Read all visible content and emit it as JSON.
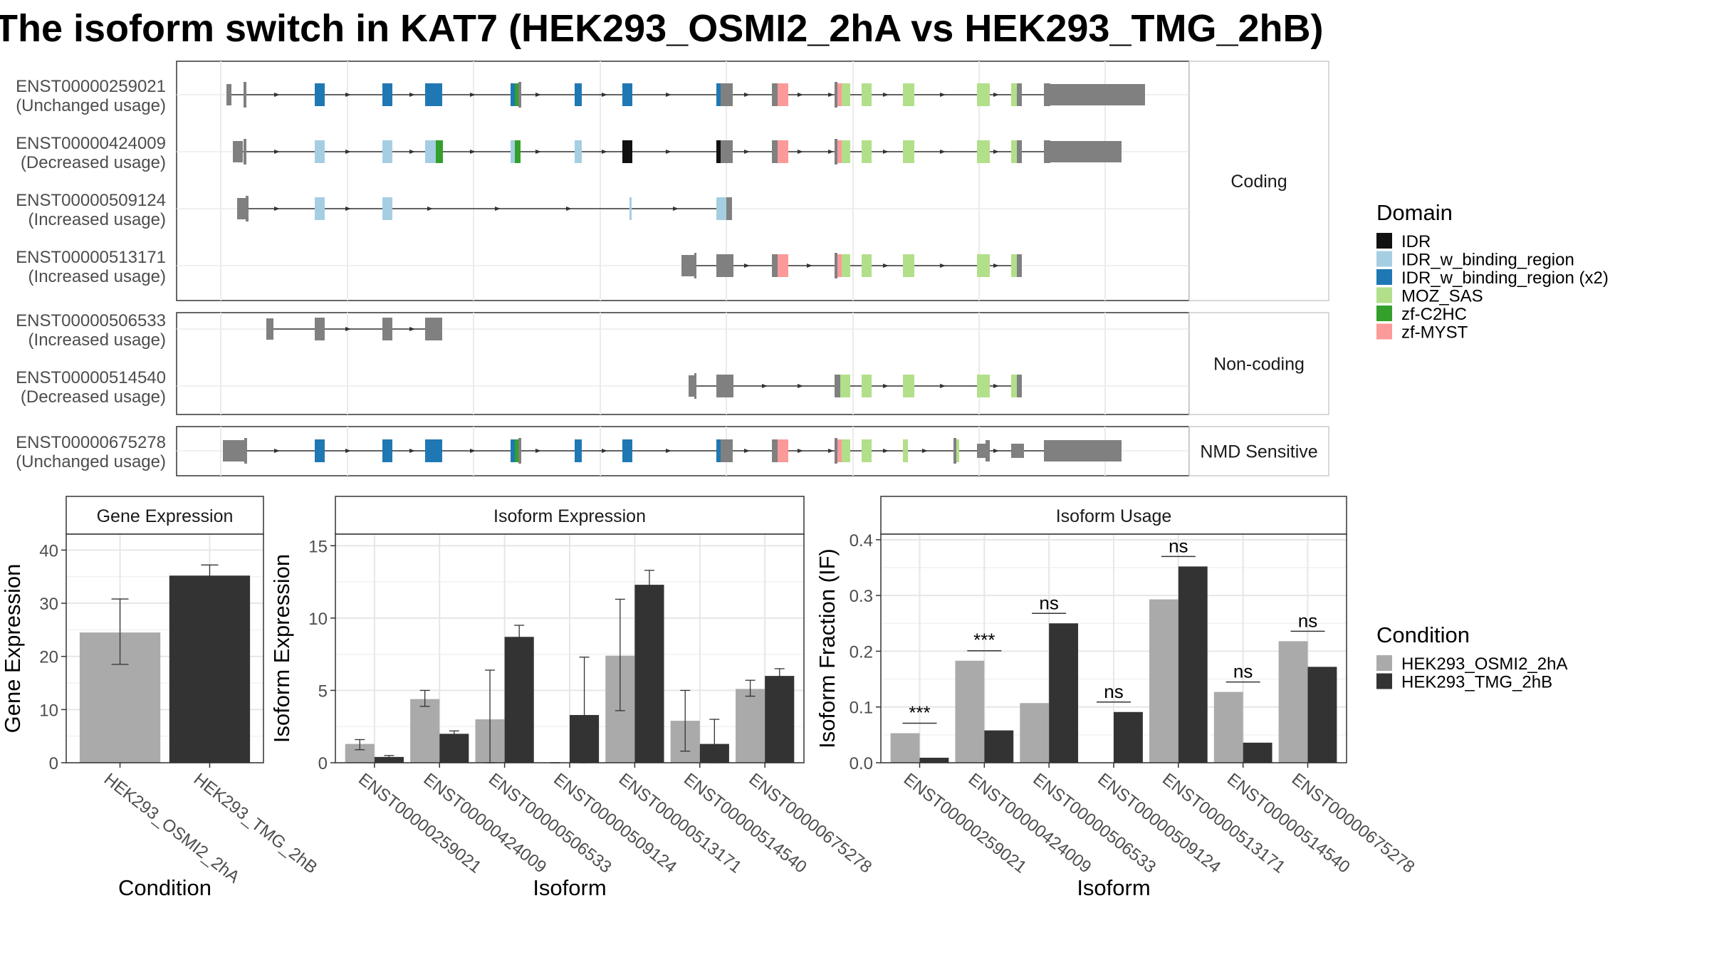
{
  "title": "The isoform switch in KAT7 (HEK293_OSMI2_2hA vs HEK293_TMG_2hB)",
  "colors": {
    "IDR": "#111111",
    "IDR_w_binding_region": "#a6cee3",
    "IDR_w_binding_region (x2)": "#1f78b4",
    "MOZ_SAS": "#b2df8a",
    "zf-C2HC": "#33a02c",
    "zf-MYST": "#fb9a99",
    "feature": "#808080",
    "condA": "#aaaaaa",
    "condB": "#333333"
  },
  "transcripts": {
    "panels": [
      {
        "label": "Coding",
        "rows": [
          {
            "id": "ENST00000259021",
            "usage": "(Unchanged usage)"
          },
          {
            "id": "ENST00000424009",
            "usage": "(Decreased usage)"
          },
          {
            "id": "ENST00000509124",
            "usage": "(Increased usage)"
          },
          {
            "id": "ENST00000513171",
            "usage": "(Increased usage)"
          }
        ]
      },
      {
        "label": "Non-coding",
        "rows": [
          {
            "id": "ENST00000506533",
            "usage": "(Increased usage)"
          },
          {
            "id": "ENST00000514540",
            "usage": "(Decreased usage)"
          }
        ]
      },
      {
        "label": "NMD Sensitive",
        "rows": [
          {
            "id": "ENST00000675278",
            "usage": "(Unchanged usage)"
          }
        ]
      }
    ]
  },
  "legend_domain": {
    "title": "Domain",
    "items": [
      "IDR",
      "IDR_w_binding_region",
      "IDR_w_binding_region (x2)",
      "MOZ_SAS",
      "zf-C2HC",
      "zf-MYST"
    ]
  },
  "legend_condition": {
    "title": "Condition",
    "items": [
      "HEK293_OSMI2_2hA",
      "HEK293_TMG_2hB"
    ]
  },
  "chart_data": [
    {
      "type": "bar",
      "title": "Gene Expression",
      "xlabel": "Condition",
      "ylabel": "Gene Expression",
      "categories": [
        "HEK293_OSMI2_2hA",
        "HEK293_TMG_2hB"
      ],
      "values": [
        24.5,
        35.2
      ],
      "errors": [
        [
          18.5,
          30.8
        ],
        [
          33.2,
          37.2
        ]
      ],
      "ylim": [
        0,
        43
      ],
      "yticks": [
        0,
        10,
        20,
        30,
        40
      ]
    },
    {
      "type": "bar",
      "title": "Isoform Expression",
      "xlabel": "Isoform",
      "ylabel": "Isoform Expression",
      "categories": [
        "ENST00000259021",
        "ENST00000424009",
        "ENST00000506533",
        "ENST00000509124",
        "ENST00000513171",
        "ENST00000514540",
        "ENST00000675278"
      ],
      "series": [
        {
          "name": "HEK293_OSMI2_2hA",
          "values": [
            1.3,
            4.4,
            3.0,
            0.0,
            7.4,
            2.9,
            5.1
          ],
          "errors": [
            [
              0.9,
              1.6
            ],
            [
              3.9,
              5.0
            ],
            [
              0.0,
              6.4
            ],
            [
              0.0,
              0.0
            ],
            [
              3.6,
              11.3
            ],
            [
              0.8,
              5.0
            ],
            [
              4.6,
              5.7
            ]
          ]
        },
        {
          "name": "HEK293_TMG_2hB",
          "values": [
            0.4,
            2.0,
            8.7,
            3.3,
            12.3,
            1.3,
            6.0
          ],
          "errors": [
            [
              0.3,
              0.5
            ],
            [
              1.8,
              2.2
            ],
            [
              8.0,
              9.5
            ],
            [
              0.0,
              7.3
            ],
            [
              11.4,
              13.3
            ],
            [
              0.0,
              3.0
            ],
            [
              5.5,
              6.5
            ]
          ]
        }
      ],
      "ylim": [
        0,
        15.8
      ],
      "yticks": [
        0,
        5,
        10,
        15
      ]
    },
    {
      "type": "bar",
      "title": "Isoform Usage",
      "xlabel": "Isoform",
      "ylabel": "Isoform Fraction (IF)",
      "categories": [
        "ENST00000259021",
        "ENST00000424009",
        "ENST00000506533",
        "ENST00000509124",
        "ENST00000513171",
        "ENST00000514540",
        "ENST00000675278"
      ],
      "series": [
        {
          "name": "HEK293_OSMI2_2hA",
          "values": [
            0.053,
            0.183,
            0.107,
            0.0,
            0.293,
            0.127,
            0.218
          ]
        },
        {
          "name": "HEK293_TMG_2hB",
          "values": [
            0.009,
            0.058,
            0.25,
            0.091,
            0.352,
            0.036,
            0.172
          ]
        }
      ],
      "significance": [
        "***",
        "***",
        "ns",
        "ns",
        "ns",
        "ns",
        "ns"
      ],
      "ylim": [
        0,
        0.41
      ],
      "yticks": [
        0.0,
        0.1,
        0.2,
        0.3,
        0.4
      ]
    }
  ]
}
